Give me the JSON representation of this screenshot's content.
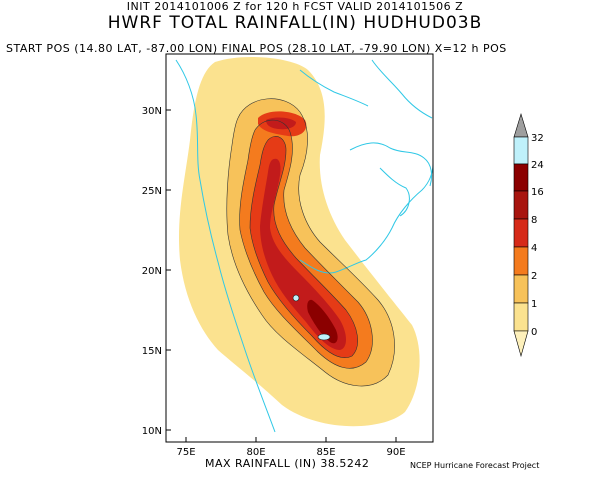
{
  "header": {
    "init_line": "INIT 2014101006 Z for 120 h FCST VALID 2014101506 Z",
    "title": "HWRF TOTAL RAINFALL(IN) HUDHUD03B",
    "position_line": "START POS (14.80 LAT, -87.00 LON)   FINAL POS (28.10 LAT, -79.90 LON) X=12 h POS"
  },
  "map": {
    "lat_labels": [
      "30N",
      "25N",
      "20N",
      "15N",
      "10N"
    ],
    "lon_labels": [
      "75E",
      "80E",
      "85E",
      "90E"
    ],
    "max_rainfall": "MAX RAINFALL (IN) 38.5242",
    "credit": "NCEP Hurricane Forecast Project"
  },
  "colorbar": {
    "levels": [
      "32",
      "24",
      "16",
      "8",
      "4",
      "2",
      "1",
      "0"
    ],
    "colors": [
      "#9e9e9e",
      "#bff1fb",
      "#8b0000",
      "#c21b1b",
      "#e53b16",
      "#f47b1e",
      "#f7c25a",
      "#fbe28f"
    ]
  }
}
